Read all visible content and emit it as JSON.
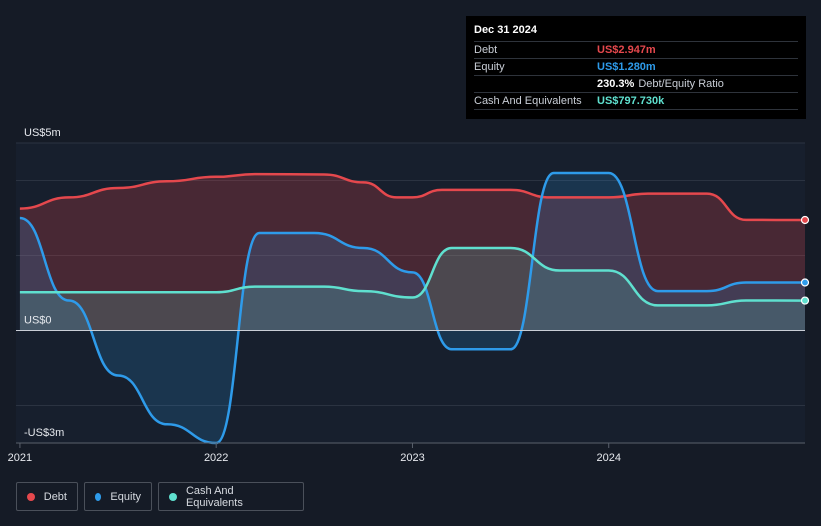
{
  "tooltip": {
    "date": "Dec 31 2024",
    "rows": [
      {
        "label": "Debt",
        "value": "US$2.947m",
        "color": "#e5484d"
      },
      {
        "label": "Equity",
        "value": "US$1.280m",
        "color": "#2e9bea"
      },
      {
        "label": "",
        "value": "230.3%",
        "suffix": "Debt/Equity Ratio",
        "color": "#ffffff"
      },
      {
        "label": "Cash And Equivalents",
        "value": "US$797.730k",
        "color": "#5fe0cf"
      }
    ]
  },
  "legend": [
    {
      "label": "Debt",
      "color": "#e5484d"
    },
    {
      "label": "Equity",
      "color": "#2e9bea"
    },
    {
      "label": "Cash And Equivalents",
      "color": "#5fe0cf"
    }
  ],
  "chart_data": {
    "type": "area",
    "ylim": [
      -3,
      5
    ],
    "y_tick_labels": [
      {
        "value": 5,
        "label": "US$5m"
      },
      {
        "value": 0,
        "label": "US$0"
      },
      {
        "value": -3,
        "label": "-US$3m"
      }
    ],
    "x_tick_labels": [
      {
        "value": 2021.0,
        "label": "2021"
      },
      {
        "value": 2022.0,
        "label": "2022"
      },
      {
        "value": 2023.0,
        "label": "2023"
      },
      {
        "value": 2024.0,
        "label": "2024"
      }
    ],
    "xlim": [
      2020.98,
      2025.0
    ],
    "gridlines": [
      5,
      4,
      2,
      0,
      -2,
      -3
    ],
    "series": [
      {
        "name": "Debt",
        "color": "#e5484d",
        "fill": "rgba(229,72,77,0.24)",
        "points": [
          [
            2021.0,
            3.25
          ],
          [
            2021.25,
            3.55
          ],
          [
            2021.5,
            3.8
          ],
          [
            2021.75,
            3.98
          ],
          [
            2022.0,
            4.1
          ],
          [
            2022.2,
            4.17
          ],
          [
            2022.55,
            4.16
          ],
          [
            2022.75,
            3.95
          ],
          [
            2022.92,
            3.55
          ],
          [
            2023.0,
            3.55
          ],
          [
            2023.15,
            3.75
          ],
          [
            2023.5,
            3.75
          ],
          [
            2023.7,
            3.55
          ],
          [
            2024.0,
            3.55
          ],
          [
            2024.2,
            3.65
          ],
          [
            2024.5,
            3.65
          ],
          [
            2024.7,
            2.95
          ],
          [
            2025.0,
            2.947
          ]
        ]
      },
      {
        "name": "Equity",
        "color": "#2e9bea",
        "fill": "rgba(46,155,234,0.18)",
        "points": [
          [
            2021.0,
            3.0
          ],
          [
            2021.25,
            0.8
          ],
          [
            2021.5,
            -1.2
          ],
          [
            2021.75,
            -2.5
          ],
          [
            2022.0,
            -3.0
          ],
          [
            2022.22,
            2.6
          ],
          [
            2022.5,
            2.6
          ],
          [
            2022.75,
            2.2
          ],
          [
            2023.0,
            1.55
          ],
          [
            2023.2,
            -0.5
          ],
          [
            2023.5,
            -0.5
          ],
          [
            2023.72,
            4.2
          ],
          [
            2024.0,
            4.2
          ],
          [
            2024.25,
            1.05
          ],
          [
            2024.5,
            1.05
          ],
          [
            2024.7,
            1.28
          ],
          [
            2025.0,
            1.28
          ]
        ]
      },
      {
        "name": "Cash And Equivalents",
        "color": "#5fe0cf",
        "fill": "rgba(95,224,207,0.18)",
        "points": [
          [
            2021.0,
            1.02
          ],
          [
            2021.5,
            1.02
          ],
          [
            2022.0,
            1.02
          ],
          [
            2022.2,
            1.17
          ],
          [
            2022.55,
            1.17
          ],
          [
            2022.75,
            1.05
          ],
          [
            2023.0,
            0.88
          ],
          [
            2023.2,
            2.2
          ],
          [
            2023.5,
            2.2
          ],
          [
            2023.75,
            1.6
          ],
          [
            2024.0,
            1.6
          ],
          [
            2024.25,
            0.67
          ],
          [
            2024.5,
            0.67
          ],
          [
            2024.7,
            0.8
          ],
          [
            2025.0,
            0.798
          ]
        ]
      }
    ]
  }
}
